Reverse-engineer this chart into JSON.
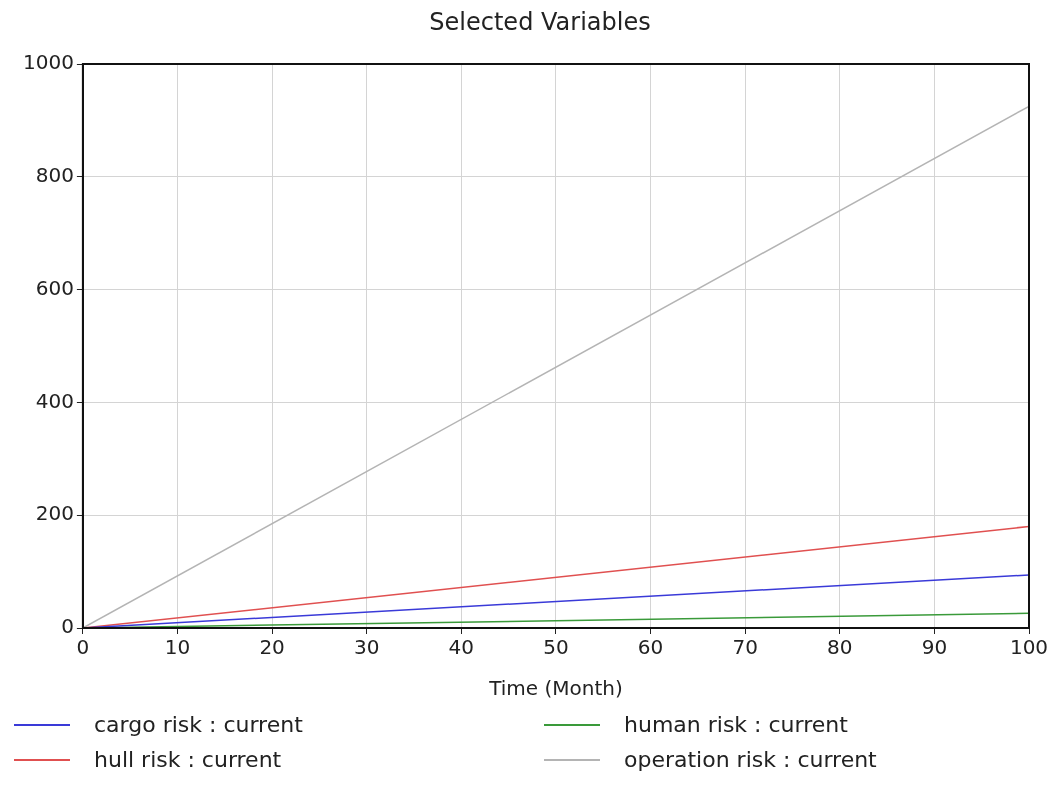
{
  "chart_data": {
    "type": "line",
    "title": "Selected Variables",
    "xlabel": "Time (Month)",
    "x": [
      0,
      100
    ],
    "xlim": [
      0,
      100
    ],
    "xticks": [
      0,
      10,
      20,
      30,
      40,
      50,
      60,
      70,
      80,
      90,
      100
    ],
    "ylim": [
      0,
      1000
    ],
    "yticks": [
      0,
      200,
      400,
      600,
      800,
      1000
    ],
    "grid": true,
    "legend": "bottom",
    "marker": "none",
    "line_style": "solid",
    "series": [
      {
        "name": "cargo risk : current",
        "color": "#3a3ad8",
        "values": [
          0,
          94
        ]
      },
      {
        "name": "hull risk : current",
        "color": "#e05050",
        "values": [
          0,
          180
        ]
      },
      {
        "name": "human risk : current",
        "color": "#3a9a3a",
        "values": [
          0,
          26
        ]
      },
      {
        "name": "operation risk : current",
        "color": "#b4b4b4",
        "values": [
          0,
          925
        ]
      }
    ]
  }
}
